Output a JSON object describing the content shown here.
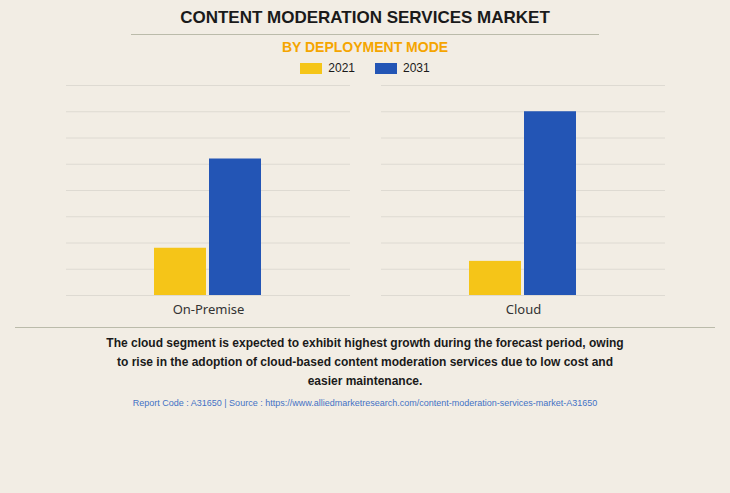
{
  "chart_data": {
    "type": "bar",
    "title": "CONTENT MODERATION SERVICES MARKET",
    "subtitle": "BY DEPLOYMENT MODE",
    "categories": [
      "On-Premise",
      "Cloud"
    ],
    "series": [
      {
        "name": "2021",
        "color": "#F5C518",
        "values": [
          1.8,
          1.3
        ]
      },
      {
        "name": "2031",
        "color": "#2355B5",
        "values": [
          5.2,
          7.0
        ]
      }
    ],
    "ylim": [
      0,
      8
    ],
    "yticks": [
      0,
      1,
      2,
      3,
      4,
      5,
      6,
      7,
      8
    ],
    "grid": true,
    "legend": "upper center",
    "tick_labels": "x",
    "annotation": "The cloud segment is expected to exhibit highest growth during the forecast period, owing\nto rise in the adoption of cloud-based content moderation services due to low cost and\neasier maintenance.",
    "footer": "Report Code : A31650  |  Source : https://www.alliedmarketresearch.com/content-moderation-services-market-A31650"
  }
}
